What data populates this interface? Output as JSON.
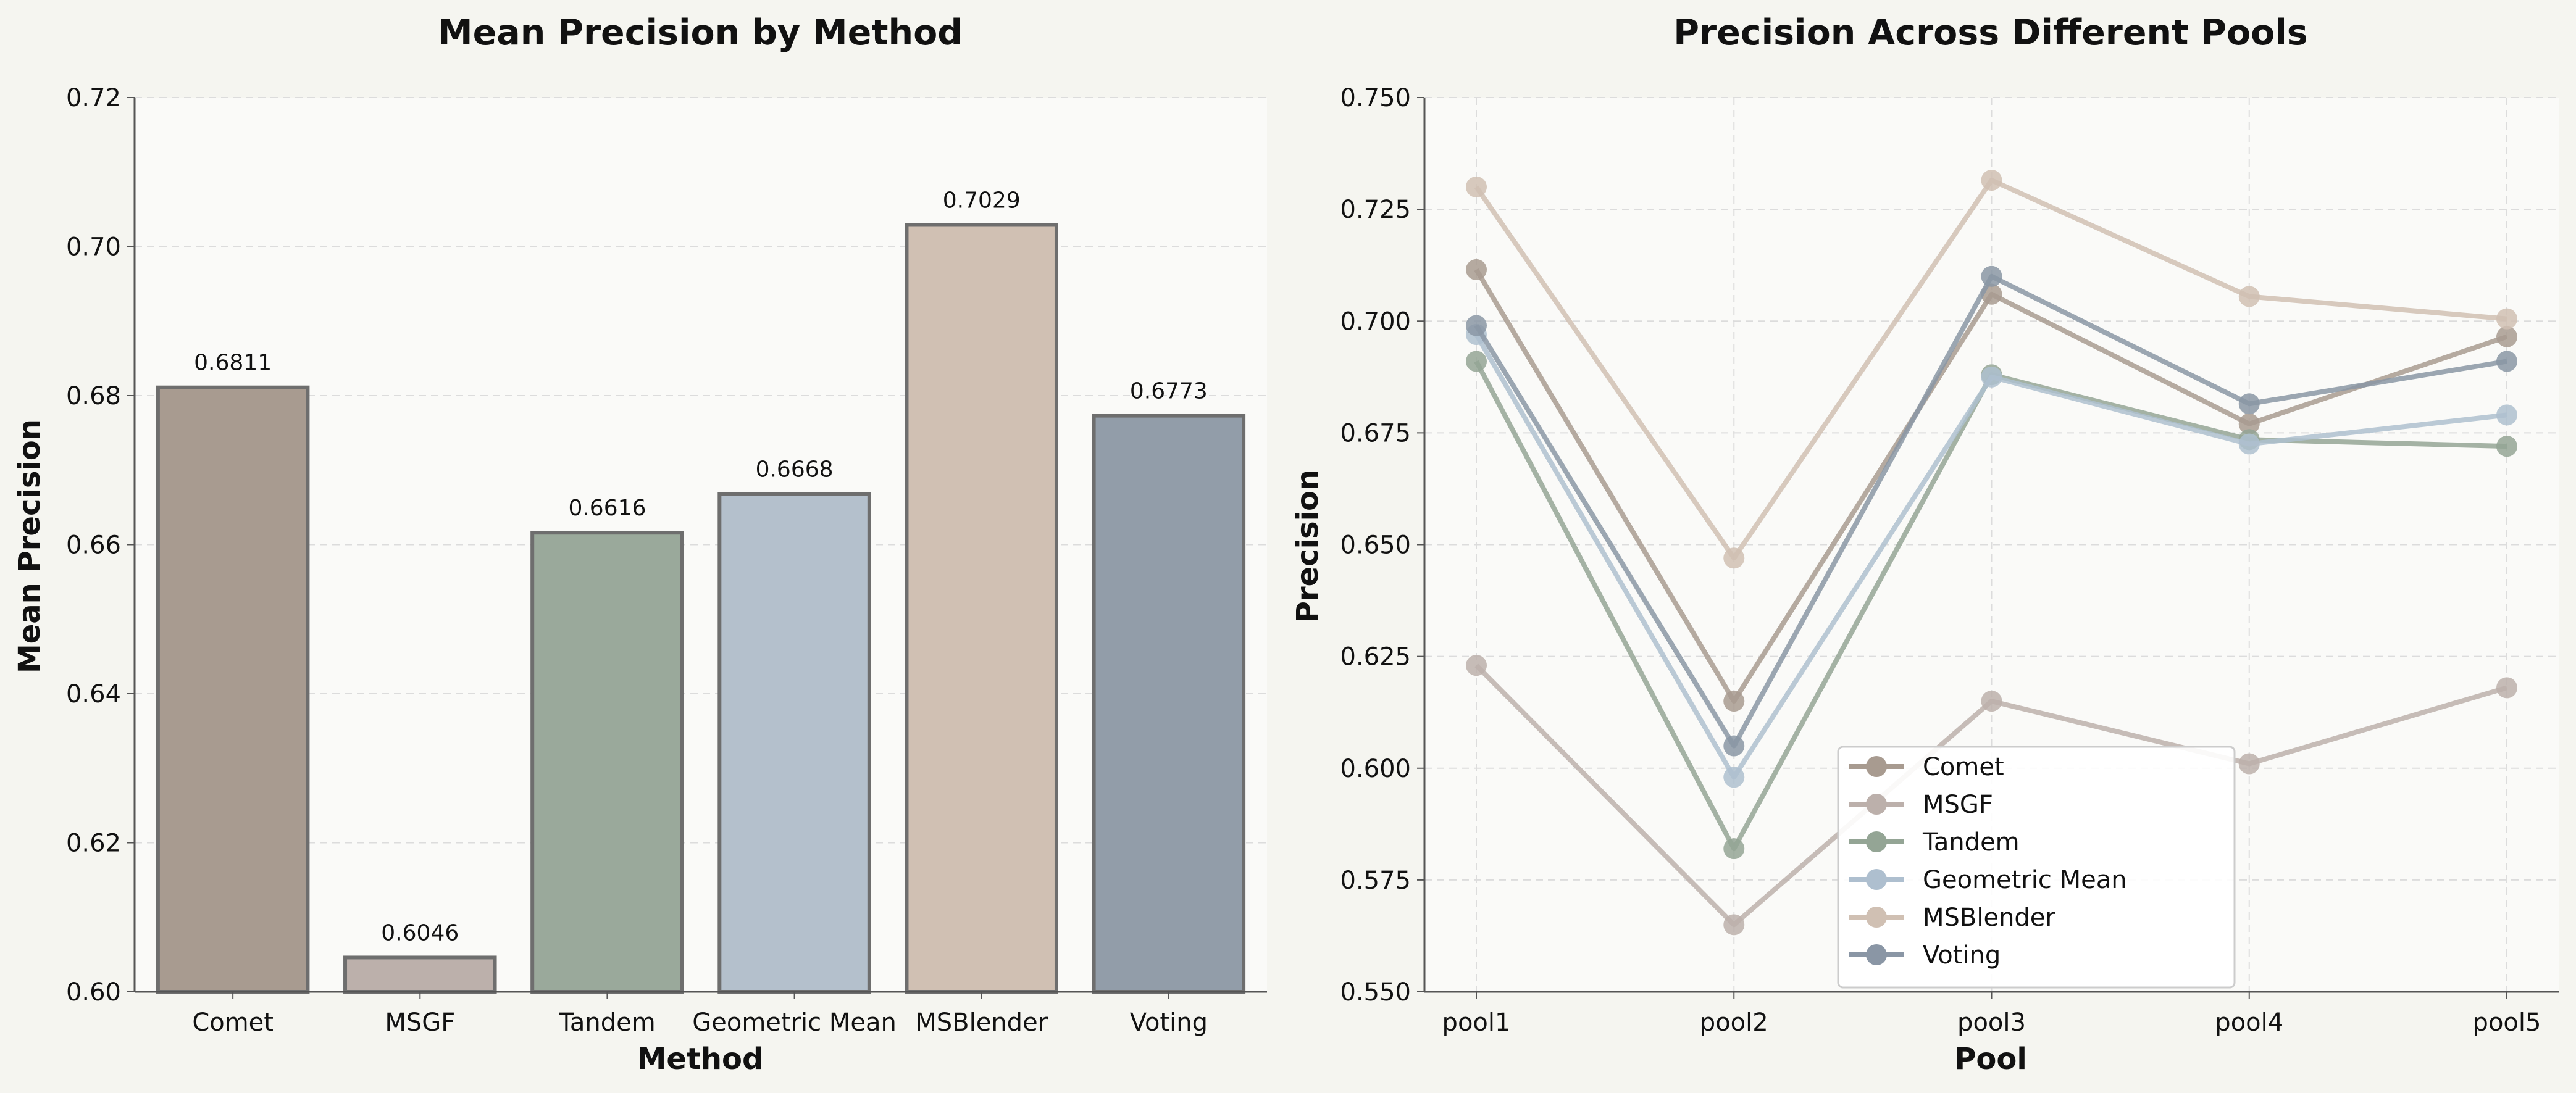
{
  "chart_data": [
    {
      "type": "bar",
      "title": "Mean Precision by Method",
      "xlabel": "Method",
      "ylabel": "Mean Precision",
      "ylim": [
        0.6,
        0.72
      ],
      "yticks": [
        0.6,
        0.62,
        0.64,
        0.66,
        0.68,
        0.7,
        0.72
      ],
      "ytick_labels": [
        "0.60",
        "0.62",
        "0.64",
        "0.66",
        "0.68",
        "0.70",
        "0.72"
      ],
      "grid": true,
      "categories": [
        "Comet",
        "MSGF",
        "Tandem",
        "Geometric Mean",
        "MSBlender",
        "Voting"
      ],
      "values": [
        0.6811,
        0.6046,
        0.6616,
        0.6668,
        0.7029,
        0.6773
      ],
      "value_labels": [
        "0.6811",
        "0.6046",
        "0.6616",
        "0.6668",
        "0.7029",
        "0.6773"
      ],
      "colors": [
        "#a89b90",
        "#bcb0ab",
        "#9aa99b",
        "#b4c0cc",
        "#d0c0b3",
        "#929da9"
      ]
    },
    {
      "type": "line",
      "title": "Precision Across Different Pools",
      "xlabel": "Pool",
      "ylabel": "Precision",
      "ylim": [
        0.55,
        0.75
      ],
      "yticks": [
        0.55,
        0.575,
        0.6,
        0.625,
        0.65,
        0.675,
        0.7,
        0.725,
        0.75
      ],
      "ytick_labels": [
        "0.550",
        "0.575",
        "0.600",
        "0.625",
        "0.650",
        "0.675",
        "0.700",
        "0.725",
        "0.750"
      ],
      "grid": true,
      "legend_position": "lower-center",
      "x": [
        "pool1",
        "pool2",
        "pool3",
        "pool4",
        "pool5"
      ],
      "series": [
        {
          "name": "Comet",
          "values": [
            0.7115,
            0.615,
            0.706,
            0.677,
            0.6965
          ],
          "color": "#a89b90"
        },
        {
          "name": "MSGF",
          "values": [
            0.623,
            0.565,
            0.615,
            0.601,
            0.618
          ],
          "color": "#bcb0ab"
        },
        {
          "name": "Tandem",
          "values": [
            0.691,
            0.582,
            0.688,
            0.6735,
            0.672
          ],
          "color": "#94a595"
        },
        {
          "name": "Geometric Mean",
          "values": [
            0.697,
            0.598,
            0.6875,
            0.6725,
            0.679
          ],
          "color": "#aebfcf"
        },
        {
          "name": "MSBlender",
          "values": [
            0.73,
            0.647,
            0.7315,
            0.7055,
            0.7005
          ],
          "color": "#d0c0b3"
        },
        {
          "name": "Voting",
          "values": [
            0.699,
            0.605,
            0.71,
            0.6815,
            0.691
          ],
          "color": "#8a96a5"
        }
      ]
    }
  ]
}
